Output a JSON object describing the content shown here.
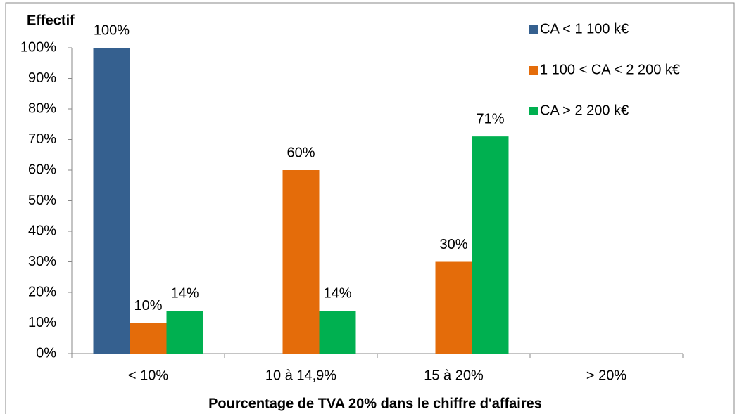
{
  "chart_data": {
    "type": "bar",
    "ylabel": "Effectif",
    "xlabel": "Pourcentage de TVA 20% dans le chiffre d'affaires",
    "categories": [
      "< 10%",
      "10 à 14,9%",
      "15 à 20%",
      "> 20%"
    ],
    "series": [
      {
        "name": "CA < 1 100 k€",
        "color": "#35608f",
        "values": [
          100,
          null,
          null,
          null
        ],
        "value_labels": [
          "100%",
          null,
          null,
          null
        ]
      },
      {
        "name": "1 100 < CA < 2 200 k€",
        "color": "#e46c0a",
        "values": [
          10,
          60,
          30,
          null
        ],
        "value_labels": [
          "10%",
          "60%",
          "30%",
          null
        ]
      },
      {
        "name": "CA > 2 200 k€",
        "color": "#00b050",
        "values": [
          14,
          14,
          71,
          null
        ],
        "value_labels": [
          "14%",
          "14%",
          "71%",
          null
        ]
      }
    ],
    "ylim": [
      0,
      100
    ],
    "yticks": [
      {
        "value": 0,
        "label": "0%"
      },
      {
        "value": 10,
        "label": "10%"
      },
      {
        "value": 20,
        "label": "20%"
      },
      {
        "value": 30,
        "label": "30%"
      },
      {
        "value": 40,
        "label": "40%"
      },
      {
        "value": 50,
        "label": "50%"
      },
      {
        "value": 60,
        "label": "60%"
      },
      {
        "value": 70,
        "label": "70%"
      },
      {
        "value": 80,
        "label": "80%"
      },
      {
        "value": 90,
        "label": "90%"
      },
      {
        "value": 100,
        "label": "100%"
      }
    ],
    "grid": false,
    "legend": "right"
  }
}
